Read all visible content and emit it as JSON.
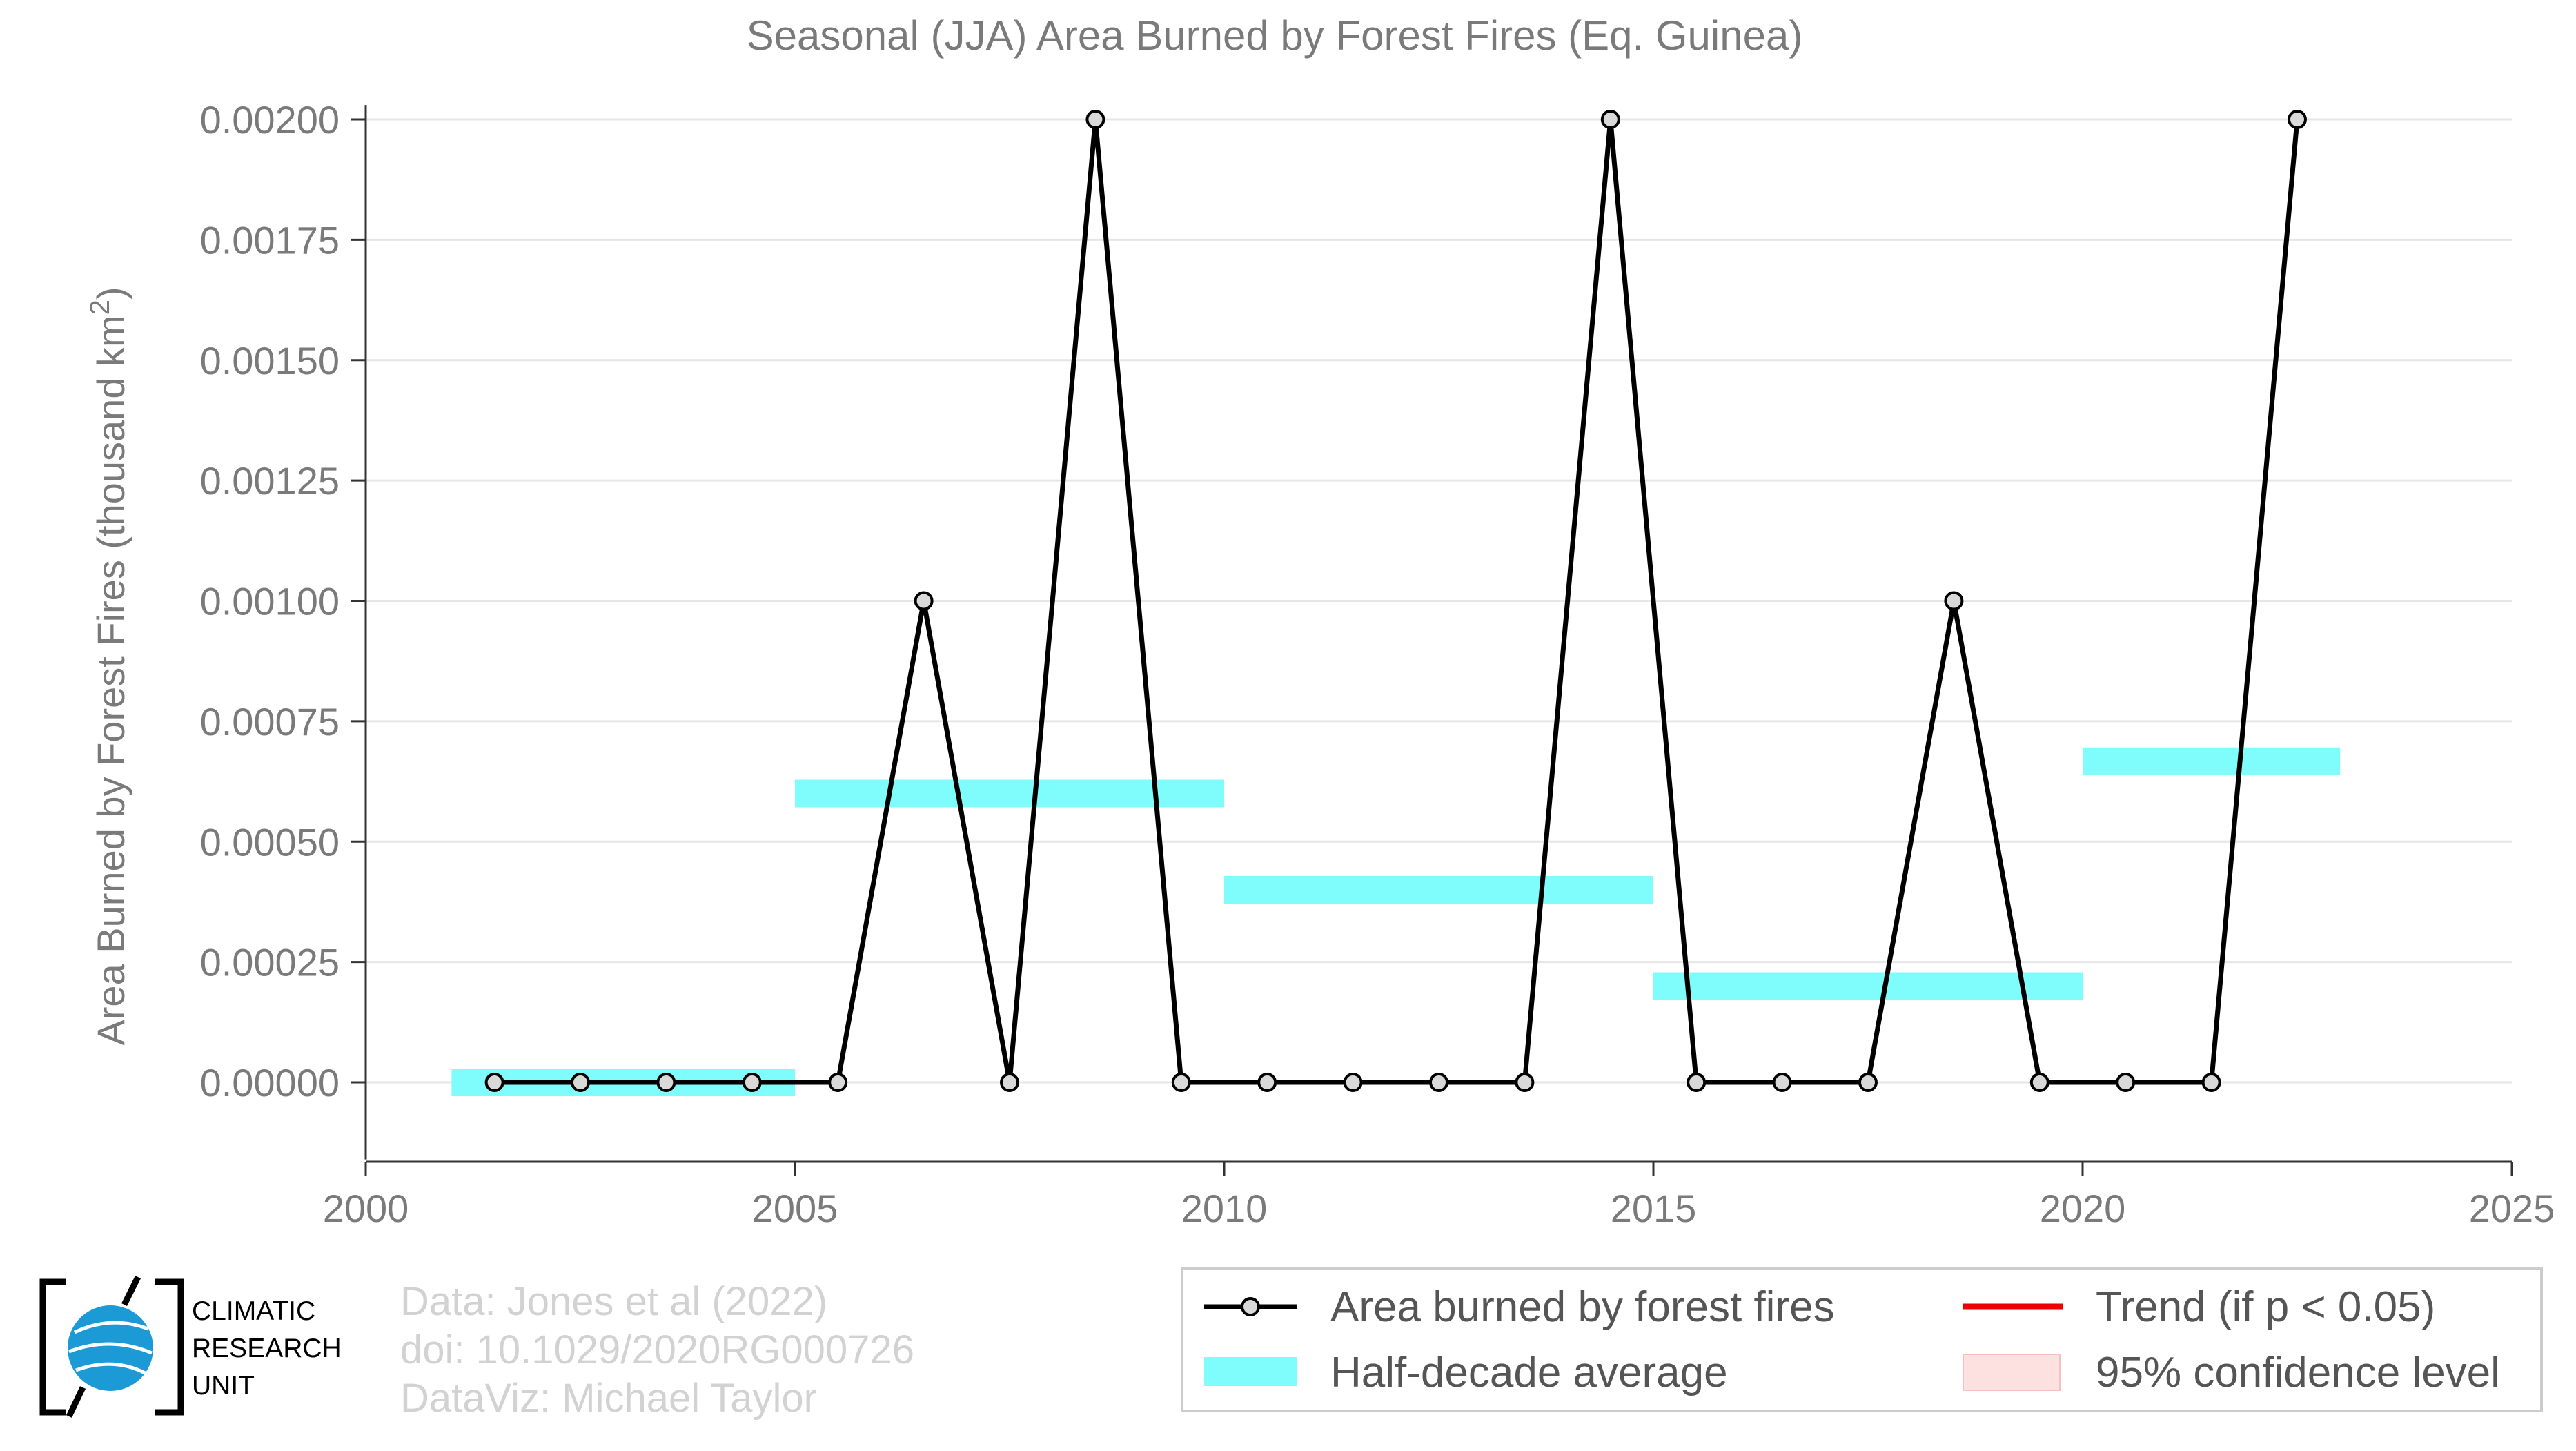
{
  "chart_data": {
    "type": "line",
    "title": "Seasonal (JJA) Area Burned by Forest Fires (Eq. Guinea)",
    "ylabel": "Area Burned by Forest Fires (thousand km²)",
    "xlabel": "",
    "xlim": [
      2000,
      2025
    ],
    "ylim": [
      -0.00016,
      0.00203
    ],
    "x_ticks": [
      "2000",
      "2005",
      "2010",
      "2015",
      "2020",
      "2025"
    ],
    "x_tick_values": [
      2000,
      2005,
      2010,
      2015,
      2020,
      2025
    ],
    "y_ticks": [
      "0.00000",
      "0.00025",
      "0.00050",
      "0.00075",
      "0.00100",
      "0.00125",
      "0.00150",
      "0.00175",
      "0.00200"
    ],
    "y_tick_values": [
      0,
      0.00025,
      0.0005,
      0.00075,
      0.001,
      0.00125,
      0.0015,
      0.00175,
      0.002
    ],
    "grid": true,
    "series": [
      {
        "name": "Area burned by forest fires",
        "color": "#000000",
        "marker_fill": "#d9d9d9",
        "x": [
          2001.5,
          2002.5,
          2003.5,
          2004.5,
          2005.5,
          2006.5,
          2007.5,
          2008.5,
          2009.5,
          2010.5,
          2011.5,
          2012.5,
          2013.5,
          2014.5,
          2015.5,
          2016.5,
          2017.5,
          2018.5,
          2019.5,
          2020.5,
          2021.5,
          2022.5
        ],
        "values": [
          0,
          0,
          0,
          0,
          0,
          0.001,
          0,
          0.002,
          0,
          0,
          0,
          0,
          0,
          0.002,
          0,
          0,
          0,
          0.001,
          0,
          0,
          0,
          0.002
        ]
      }
    ],
    "half_decade_average": {
      "name": "Half-decade average",
      "color": "#7ffdfd",
      "segments": [
        {
          "x0": 2001,
          "x1": 2005,
          "value": 0.0
        },
        {
          "x0": 2005,
          "x1": 2010,
          "value": 0.0006
        },
        {
          "x0": 2010,
          "x1": 2015,
          "value": 0.0004
        },
        {
          "x0": 2015,
          "x1": 2020,
          "value": 0.0002
        },
        {
          "x0": 2020,
          "x1": 2023,
          "value": 0.000667
        }
      ]
    },
    "legend": {
      "placement": "bottom-right",
      "entries": [
        {
          "label": "Area burned by forest fires",
          "kind": "line-marker",
          "color": "#000000"
        },
        {
          "label": "Trend (if p < 0.05)",
          "kind": "line",
          "color": "#ee0000"
        },
        {
          "label": "Half-decade average",
          "kind": "band",
          "color": "#7ffdfd"
        },
        {
          "label": "95% confidence level",
          "kind": "fill",
          "color": "#fde0e0"
        }
      ]
    }
  },
  "credits": {
    "line1": "Data: Jones et al (2022)",
    "line2": "doi: 10.1029/2020RG000726",
    "line3": "DataViz: Michael Taylor"
  },
  "logo": {
    "line1": "CLIMATIC",
    "line2": "RESEARCH",
    "line3": "UNIT",
    "globe_color": "#1b9ad6"
  }
}
